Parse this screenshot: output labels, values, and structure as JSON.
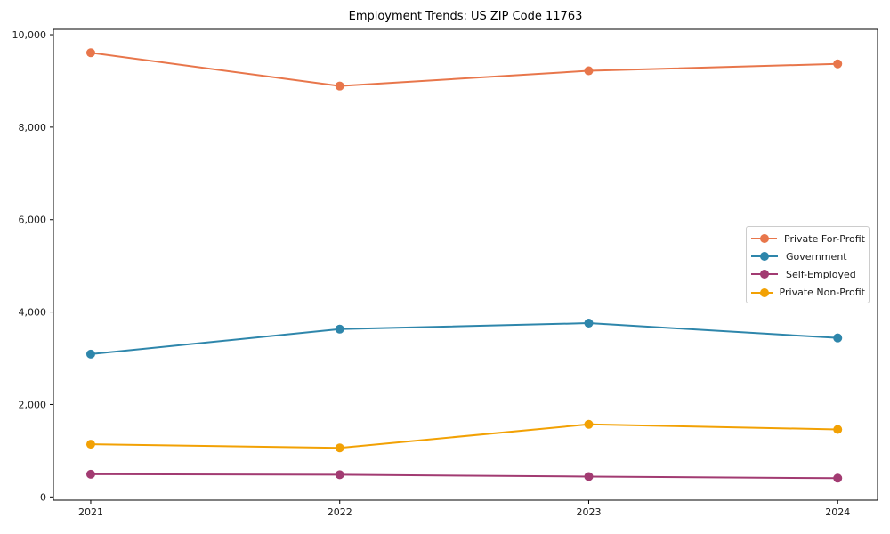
{
  "page": {
    "background": "#ffffff",
    "text_color": "#1a1a1a",
    "axis_color": "#000000",
    "legend_border_color": "#cccccc"
  },
  "chart_data": {
    "type": "line",
    "title": "Employment Trends: US ZIP Code 11763",
    "xlabel": "",
    "ylabel": "",
    "grid": false,
    "legend_position": "center right",
    "x": [
      2021,
      2022,
      2023,
      2024
    ],
    "x_tick_labels": [
      "2021",
      "2022",
      "2023",
      "2024"
    ],
    "xlim": [
      2020.85,
      2024.16
    ],
    "y_ticks": [
      0,
      2000,
      4000,
      6000,
      8000,
      10000
    ],
    "y_tick_labels": [
      "0",
      "2,000",
      "4,000",
      "6,000",
      "8,000",
      "10,000"
    ],
    "ylim": [
      -71,
      10116
    ],
    "series": [
      {
        "name": "Private For-Profit",
        "color": "#E8764B",
        "values": [
          9610,
          8890,
          9220,
          9370
        ]
      },
      {
        "name": "Government",
        "color": "#2E86AB",
        "values": [
          3090,
          3630,
          3760,
          3440
        ]
      },
      {
        "name": "Self-Employed",
        "color": "#A23B72",
        "values": [
          490,
          480,
          440,
          405
        ]
      },
      {
        "name": "Private Non-Profit",
        "color": "#F2A104",
        "values": [
          1140,
          1060,
          1570,
          1460
        ]
      }
    ]
  }
}
